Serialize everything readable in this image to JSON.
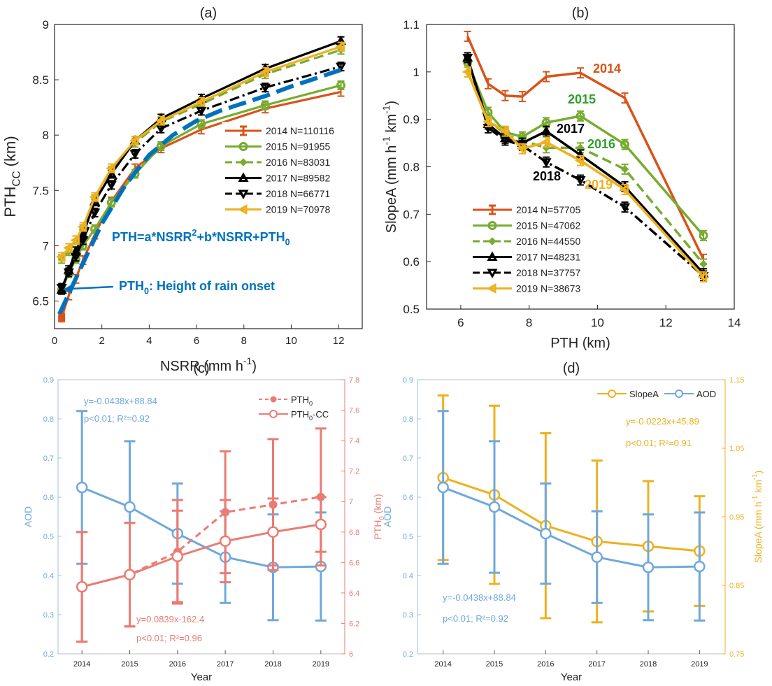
{
  "chart_data": [
    {
      "panel": "(a)",
      "type": "line",
      "xlabel": "NSRR (mm h",
      "xlabel_sup": "-1",
      "xlabel_end": ")",
      "ylabel": "PTH",
      "ylabel_sub": "CC",
      "ylabel_end": " (km)",
      "xlim": [
        0,
        13
      ],
      "ylim": [
        6.25,
        9
      ],
      "xticks": [
        0,
        2,
        4,
        6,
        8,
        10,
        12
      ],
      "yticks": [
        6.5,
        7,
        7.5,
        8,
        8.5,
        9
      ],
      "legend_position": "right",
      "series": [
        {
          "name": "2014 N=110116",
          "color": "#d95319",
          "dash": "solid",
          "marker": "bar",
          "x": [
            0.3,
            0.6,
            0.9,
            1.2,
            1.7,
            2.4,
            3.4,
            4.5,
            6.2,
            8.9,
            12.1
          ],
          "y": [
            6.35,
            6.55,
            6.7,
            6.87,
            7.1,
            7.4,
            7.7,
            7.88,
            8.05,
            8.24,
            8.39
          ]
        },
        {
          "name": "2015 N=91955",
          "color": "#77ac30",
          "dash": "solid",
          "marker": "circle",
          "x": [
            0.3,
            0.6,
            0.9,
            1.2,
            1.7,
            2.4,
            3.4,
            4.5,
            6.2,
            8.9,
            12.1
          ],
          "y": [
            6.6,
            6.75,
            6.88,
            7.0,
            7.15,
            7.39,
            7.65,
            7.9,
            8.1,
            8.27,
            8.45
          ]
        },
        {
          "name": "2016 N=83031",
          "color": "#77ac30",
          "dash": "dash",
          "marker": "diamond",
          "x": [
            0.3,
            0.6,
            0.9,
            1.2,
            1.7,
            2.4,
            3.4,
            4.5,
            6.2,
            8.9,
            12.1
          ],
          "y": [
            6.88,
            6.95,
            7.05,
            7.15,
            7.42,
            7.68,
            7.93,
            8.12,
            8.28,
            8.55,
            8.77
          ]
        },
        {
          "name": "2017 N=89582",
          "color": "#000000",
          "dash": "solid",
          "marker": "triangle-up",
          "x": [
            0.3,
            0.6,
            0.9,
            1.2,
            1.7,
            2.4,
            3.4,
            4.5,
            6.2,
            8.9,
            12.1
          ],
          "y": [
            6.6,
            6.78,
            6.95,
            7.1,
            7.4,
            7.65,
            7.95,
            8.15,
            8.33,
            8.6,
            8.85
          ]
        },
        {
          "name": "2018 N=66771",
          "color": "#000000",
          "dash": "dashdot",
          "marker": "triangle-down",
          "x": [
            0.3,
            0.6,
            0.9,
            1.2,
            1.7,
            2.4,
            3.4,
            4.5,
            6.2,
            8.9,
            12.1
          ],
          "y": [
            6.62,
            6.76,
            6.9,
            7.05,
            7.3,
            7.55,
            7.83,
            8.06,
            8.22,
            8.43,
            8.62
          ]
        },
        {
          "name": "2019 N=70978",
          "color": "#edb120",
          "dash": "solid",
          "marker": "triangle-left",
          "x": [
            0.3,
            0.6,
            0.9,
            1.2,
            1.7,
            2.4,
            3.4,
            4.5,
            6.2,
            8.9,
            12.1
          ],
          "y": [
            6.9,
            6.98,
            7.05,
            7.17,
            7.44,
            7.7,
            7.95,
            8.13,
            8.3,
            8.57,
            8.8
          ]
        }
      ],
      "fit": {
        "color": "#0072bd",
        "x": [
          0.2,
          1,
          2,
          3,
          4,
          5,
          6,
          7,
          8,
          9,
          10,
          11,
          12.1
        ],
        "y": [
          6.38,
          6.75,
          7.2,
          7.55,
          7.82,
          8.0,
          8.13,
          8.22,
          8.29,
          8.36,
          8.44,
          8.51,
          8.59
        ]
      },
      "annotations": {
        "formula": [
          "PTH=a*NSRR",
          "2",
          "+b*NSRR+PTH",
          "0"
        ],
        "onset": [
          "PTH",
          "0",
          ": Height of rain onset"
        ],
        "color": "#0072bd"
      }
    },
    {
      "panel": "(b)",
      "type": "line",
      "xlabel": "PTH (km)",
      "ylabel": "SlopeA (mm h",
      "ylabel_sup1": "-1",
      "ylabel_mid": " km",
      "ylabel_sup2": "-1",
      "ylabel_end": ")",
      "xlim": [
        5,
        14
      ],
      "ylim": [
        0.5,
        1.1
      ],
      "xticks": [
        6,
        8,
        10,
        12,
        14
      ],
      "yticks": [
        0.5,
        0.6,
        0.7,
        0.8,
        0.9,
        1,
        1.1
      ],
      "legend_position": "bottom-left",
      "series": [
        {
          "name": "2014 N=57705",
          "label": "2014",
          "color": "#d95319",
          "dash": "solid",
          "marker": "bar",
          "x": [
            6.2,
            6.8,
            7.3,
            7.8,
            8.5,
            9.5,
            10.8,
            13.1
          ],
          "y": [
            1.075,
            0.975,
            0.95,
            0.948,
            0.99,
            0.998,
            0.945,
            0.605
          ]
        },
        {
          "name": "2015 N=47062",
          "label": "2015",
          "color": "#77ac30",
          "dash": "solid",
          "marker": "circle",
          "x": [
            6.2,
            6.8,
            7.3,
            7.8,
            8.5,
            9.5,
            10.8,
            13.1
          ],
          "y": [
            1.02,
            0.915,
            0.873,
            0.863,
            0.893,
            0.907,
            0.847,
            0.655
          ]
        },
        {
          "name": "2016 N=44550",
          "label": "2016",
          "color": "#77ac30",
          "dash": "dash",
          "marker": "diamond",
          "x": [
            6.2,
            6.8,
            7.3,
            7.8,
            8.5,
            9.5,
            10.8,
            13.1
          ],
          "y": [
            1.0,
            0.9,
            0.868,
            0.855,
            0.84,
            0.84,
            0.795,
            0.595
          ]
        },
        {
          "name": "2017 N=48231",
          "label": "2017",
          "color": "#000000",
          "dash": "solid",
          "marker": "triangle-up",
          "x": [
            6.2,
            6.8,
            7.3,
            7.8,
            8.5,
            9.5,
            10.8,
            13.1
          ],
          "y": [
            1.03,
            0.89,
            0.86,
            0.85,
            0.875,
            0.825,
            0.758,
            0.575
          ]
        },
        {
          "name": "2018 N=37757",
          "label": "2018",
          "color": "#000000",
          "dash": "dashdot",
          "marker": "triangle-down",
          "x": [
            6.2,
            6.8,
            7.3,
            7.8,
            8.5,
            9.5,
            10.8,
            13.1
          ],
          "y": [
            1.03,
            0.882,
            0.856,
            0.845,
            0.81,
            0.772,
            0.715,
            0.57
          ]
        },
        {
          "name": "2019 N=38673",
          "label": "2019",
          "color": "#edb120",
          "dash": "solid",
          "marker": "triangle-left",
          "x": [
            6.2,
            6.8,
            7.3,
            7.8,
            8.5,
            9.5,
            10.8,
            13.1
          ],
          "y": [
            1.0,
            0.895,
            0.875,
            0.838,
            0.852,
            0.813,
            0.752,
            0.568
          ]
        }
      ]
    },
    {
      "panel": "(c)",
      "type": "line",
      "xlabel": "Year",
      "ylabel_left": "AOD",
      "ylabel_right": "PTH",
      "ylabel_right_sub": "0",
      "ylabel_right_end": " (km)",
      "categories": [
        "2014",
        "2015",
        "2016",
        "2017",
        "2018",
        "2019"
      ],
      "ylim_left": [
        0.2,
        0.9
      ],
      "ylim_right": [
        6,
        7.8
      ],
      "yticks_left": [
        0.2,
        0.3,
        0.4,
        0.5,
        0.6,
        0.7,
        0.8,
        0.9
      ],
      "yticks_right": [
        6,
        6.2,
        6.4,
        6.6,
        6.8,
        7,
        7.2,
        7.4,
        7.6,
        7.8
      ],
      "legend_position": "top-right",
      "series": [
        {
          "name": "AOD",
          "axis": "left",
          "color": "#6fa8dc",
          "dash": "solid",
          "values": [
            0.625,
            0.575,
            0.507,
            0.447,
            0.421,
            0.423
          ],
          "err": [
            0.195,
            0.168,
            0.128,
            0.117,
            0.135,
            0.138
          ]
        },
        {
          "name": "PTH0",
          "legend": [
            "PTH",
            "0"
          ],
          "axis": "right",
          "color": "#ea7c74",
          "dash": "dash",
          "values": [
            6.44,
            6.52,
            6.67,
            6.93,
            6.98,
            7.03
          ],
          "err": [
            0.36,
            0.34,
            0.34,
            0.4,
            0.43,
            0.45
          ]
        },
        {
          "name": "PTH0-CC",
          "legend": [
            "PTH",
            "0",
            "-CC"
          ],
          "axis": "right",
          "color": "#ea7c74",
          "dash": "solid",
          "values": [
            6.44,
            6.52,
            6.64,
            6.74,
            6.8,
            6.85
          ],
          "err": [
            0.36,
            0.34,
            0.3,
            0.27,
            0.22,
            0.18
          ]
        }
      ],
      "annotations": [
        {
          "lines": [
            "y=-0.0438x+88.84",
            "p<0.01;  R²=0.92"
          ],
          "color": "#6fa8dc"
        },
        {
          "lines": [
            "y=0.0839x-162.4",
            "p<0.01;  R²=0.96"
          ],
          "color": "#ea7c74"
        }
      ]
    },
    {
      "panel": "(d)",
      "type": "line",
      "xlabel": "Year",
      "ylabel_left": "AOD",
      "ylabel_right": "SlopeA (mm h",
      "ylabel_right_sup1": "-1",
      "ylabel_right_mid": " km",
      "ylabel_right_sup2": "-1",
      "ylabel_right_end": ")",
      "categories": [
        "2014",
        "2015",
        "2016",
        "2017",
        "2018",
        "2019"
      ],
      "ylim_left": [
        0.2,
        0.9
      ],
      "ylim_right": [
        0.75,
        1.15
      ],
      "yticks_left": [
        0.2,
        0.3,
        0.4,
        0.5,
        0.6,
        0.7,
        0.8,
        0.9
      ],
      "yticks_right": [
        0.75,
        0.85,
        0.95,
        1.05,
        1.15
      ],
      "legend_position": "top-right",
      "series": [
        {
          "name": "SlopeA",
          "axis": "right",
          "color": "#edb120",
          "dash": "solid",
          "values": [
            1.007,
            0.982,
            0.937,
            0.914,
            0.907,
            0.9
          ],
          "err": [
            0.12,
            0.13,
            0.135,
            0.118,
            0.095,
            0.08
          ]
        },
        {
          "name": "AOD",
          "axis": "left",
          "color": "#6fa8dc",
          "dash": "solid",
          "values": [
            0.625,
            0.575,
            0.507,
            0.447,
            0.421,
            0.423
          ],
          "err": [
            0.195,
            0.168,
            0.128,
            0.117,
            0.135,
            0.138
          ]
        }
      ],
      "annotations": [
        {
          "lines": [
            "y=-0.0223x+45.89",
            "p<0.01;  R²=0.91"
          ],
          "color": "#edb120"
        },
        {
          "lines": [
            "y=-0.0438x+88.84",
            "p<0.01;  R²=0.92"
          ],
          "color": "#6fa8dc"
        }
      ]
    }
  ]
}
